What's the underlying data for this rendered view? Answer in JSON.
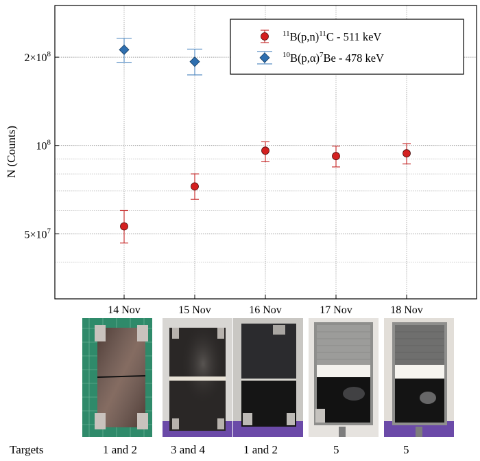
{
  "chart_data": {
    "type": "scatter",
    "ylabel": "N (Counts)",
    "yscale": "log",
    "ylim": [
      30000000,
      300000000
    ],
    "y_ticks": [
      {
        "value": 50000000,
        "label": "5×10",
        "exp": "7"
      },
      {
        "value": 100000000,
        "label": "10",
        "exp": "8"
      },
      {
        "value": 200000000,
        "label": "2×10",
        "exp": "8"
      }
    ],
    "categories": [
      "14 Nov",
      "15 Nov",
      "16 Nov",
      "17 Nov",
      "18 Nov"
    ],
    "grid": true,
    "legend_position": "top-right",
    "series": [
      {
        "name_parts": [
          {
            "t": "11",
            "sup": true
          },
          {
            "t": "B(p,n)"
          },
          {
            "t": "11",
            "sup": true
          },
          {
            "t": "C - 511 keV"
          }
        ],
        "marker": "circle",
        "color": "#d42020",
        "errcolor": "#c83232",
        "points": [
          {
            "x": "14 Nov",
            "y": 53000000,
            "ylo": 46500000,
            "yhi": 60000000
          },
          {
            "x": "15 Nov",
            "y": 72500000,
            "ylo": 65500000,
            "yhi": 80000000
          },
          {
            "x": "16 Nov",
            "y": 96000000,
            "ylo": 88000000,
            "yhi": 103000000
          },
          {
            "x": "17 Nov",
            "y": 92000000,
            "ylo": 84500000,
            "yhi": 99500000
          },
          {
            "x": "18 Nov",
            "y": 94000000,
            "ylo": 86500000,
            "yhi": 101500000
          }
        ]
      },
      {
        "name_parts": [
          {
            "t": "10",
            "sup": true
          },
          {
            "t": "B(p,α)"
          },
          {
            "t": "7",
            "sup": true
          },
          {
            "t": "Be - 478 keV"
          }
        ],
        "marker": "diamond",
        "color": "#2e6fb0",
        "errcolor": "#5a8fc4",
        "points": [
          {
            "x": "14 Nov",
            "y": 212000000,
            "ylo": 192000000,
            "yhi": 232000000
          },
          {
            "x": "15 Nov",
            "y": 193000000,
            "ylo": 174000000,
            "yhi": 213000000
          }
        ]
      }
    ]
  },
  "targets": {
    "label": "Targets",
    "values": [
      "1 and 2",
      "3 and 4",
      "1 and 2",
      "5",
      "5"
    ]
  },
  "photos": [
    {
      "name": "photo-target-1-2-cut",
      "style": "brown-split"
    },
    {
      "name": "photo-target-3-4",
      "style": "dark-stripe"
    },
    {
      "name": "photo-target-1-2-half",
      "style": "dark-half"
    },
    {
      "name": "photo-target-5-a",
      "style": "mesh-top"
    },
    {
      "name": "photo-target-5-b",
      "style": "mesh-top-light"
    }
  ]
}
